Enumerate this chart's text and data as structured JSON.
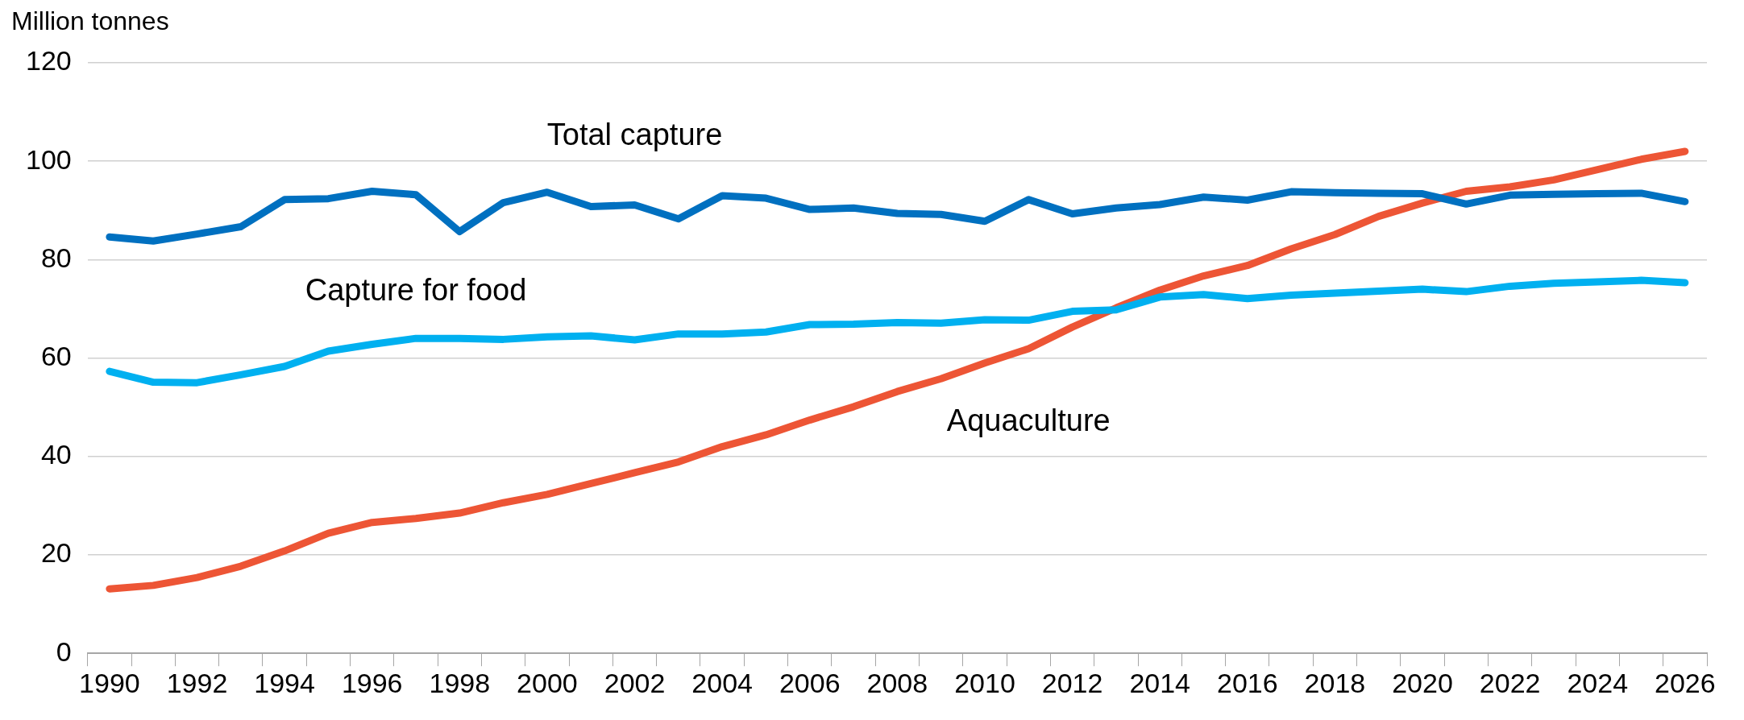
{
  "chart_data": {
    "type": "line",
    "ylabel": "Million tonnes",
    "categories": [
      "1990",
      null,
      "1992",
      null,
      "1994",
      null,
      "1996",
      null,
      "1998",
      null,
      "2000",
      null,
      "2002",
      null,
      "2004",
      null,
      "2006",
      null,
      "2008",
      null,
      "2010",
      null,
      "2012",
      null,
      "2014",
      null,
      "2016",
      null,
      "2018",
      null,
      "2020",
      null,
      "2022",
      null,
      "2024",
      null,
      "2026"
    ],
    "series": [
      {
        "name": "Total capture",
        "color": "#0070c0",
        "values": [
          84.6,
          83.8,
          85.2,
          86.7,
          92.2,
          92.4,
          93.9,
          93.2,
          85.7,
          91.6,
          93.7,
          90.8,
          91.1,
          88.3,
          93.0,
          92.5,
          90.2,
          90.5,
          89.4,
          89.2,
          87.8,
          92.2,
          89.3,
          90.5,
          91.2,
          92.7,
          92.1,
          93.8,
          93.6,
          93.5,
          93.4,
          91.3,
          93.1,
          93.3,
          93.4,
          93.5,
          91.8
        ]
      },
      {
        "name": "Capture for food",
        "color": "#00b0f0",
        "values": [
          57.3,
          55.1,
          55.0,
          56.6,
          58.3,
          61.4,
          62.8,
          64.0,
          64.0,
          63.8,
          64.3,
          64.5,
          63.7,
          64.9,
          64.9,
          65.3,
          66.8,
          66.9,
          67.2,
          67.1,
          67.8,
          67.7,
          69.5,
          69.8,
          72.4,
          72.9,
          72.1,
          72.8,
          73.2,
          73.6,
          74.0,
          73.5,
          74.6,
          75.2,
          75.5,
          75.8,
          75.3
        ]
      },
      {
        "name": "Aquaculture",
        "color": "#ed5535",
        "values": [
          13.1,
          13.8,
          15.4,
          17.7,
          20.8,
          24.4,
          26.6,
          27.4,
          28.5,
          30.6,
          32.3,
          34.5,
          36.7,
          38.9,
          42.0,
          44.4,
          47.4,
          50.1,
          53.2,
          55.8,
          59.0,
          61.9,
          66.3,
          70.2,
          73.8,
          76.7,
          78.8,
          82.2,
          85.1,
          88.8,
          91.5,
          93.9,
          94.8,
          96.2,
          98.3,
          100.4,
          102.0
        ]
      }
    ],
    "ylim": [
      0,
      120
    ],
    "yticks": [
      0,
      20,
      40,
      60,
      80,
      100,
      120
    ],
    "grid": "y",
    "legend": false,
    "marker": "none",
    "line_style": "solid"
  }
}
